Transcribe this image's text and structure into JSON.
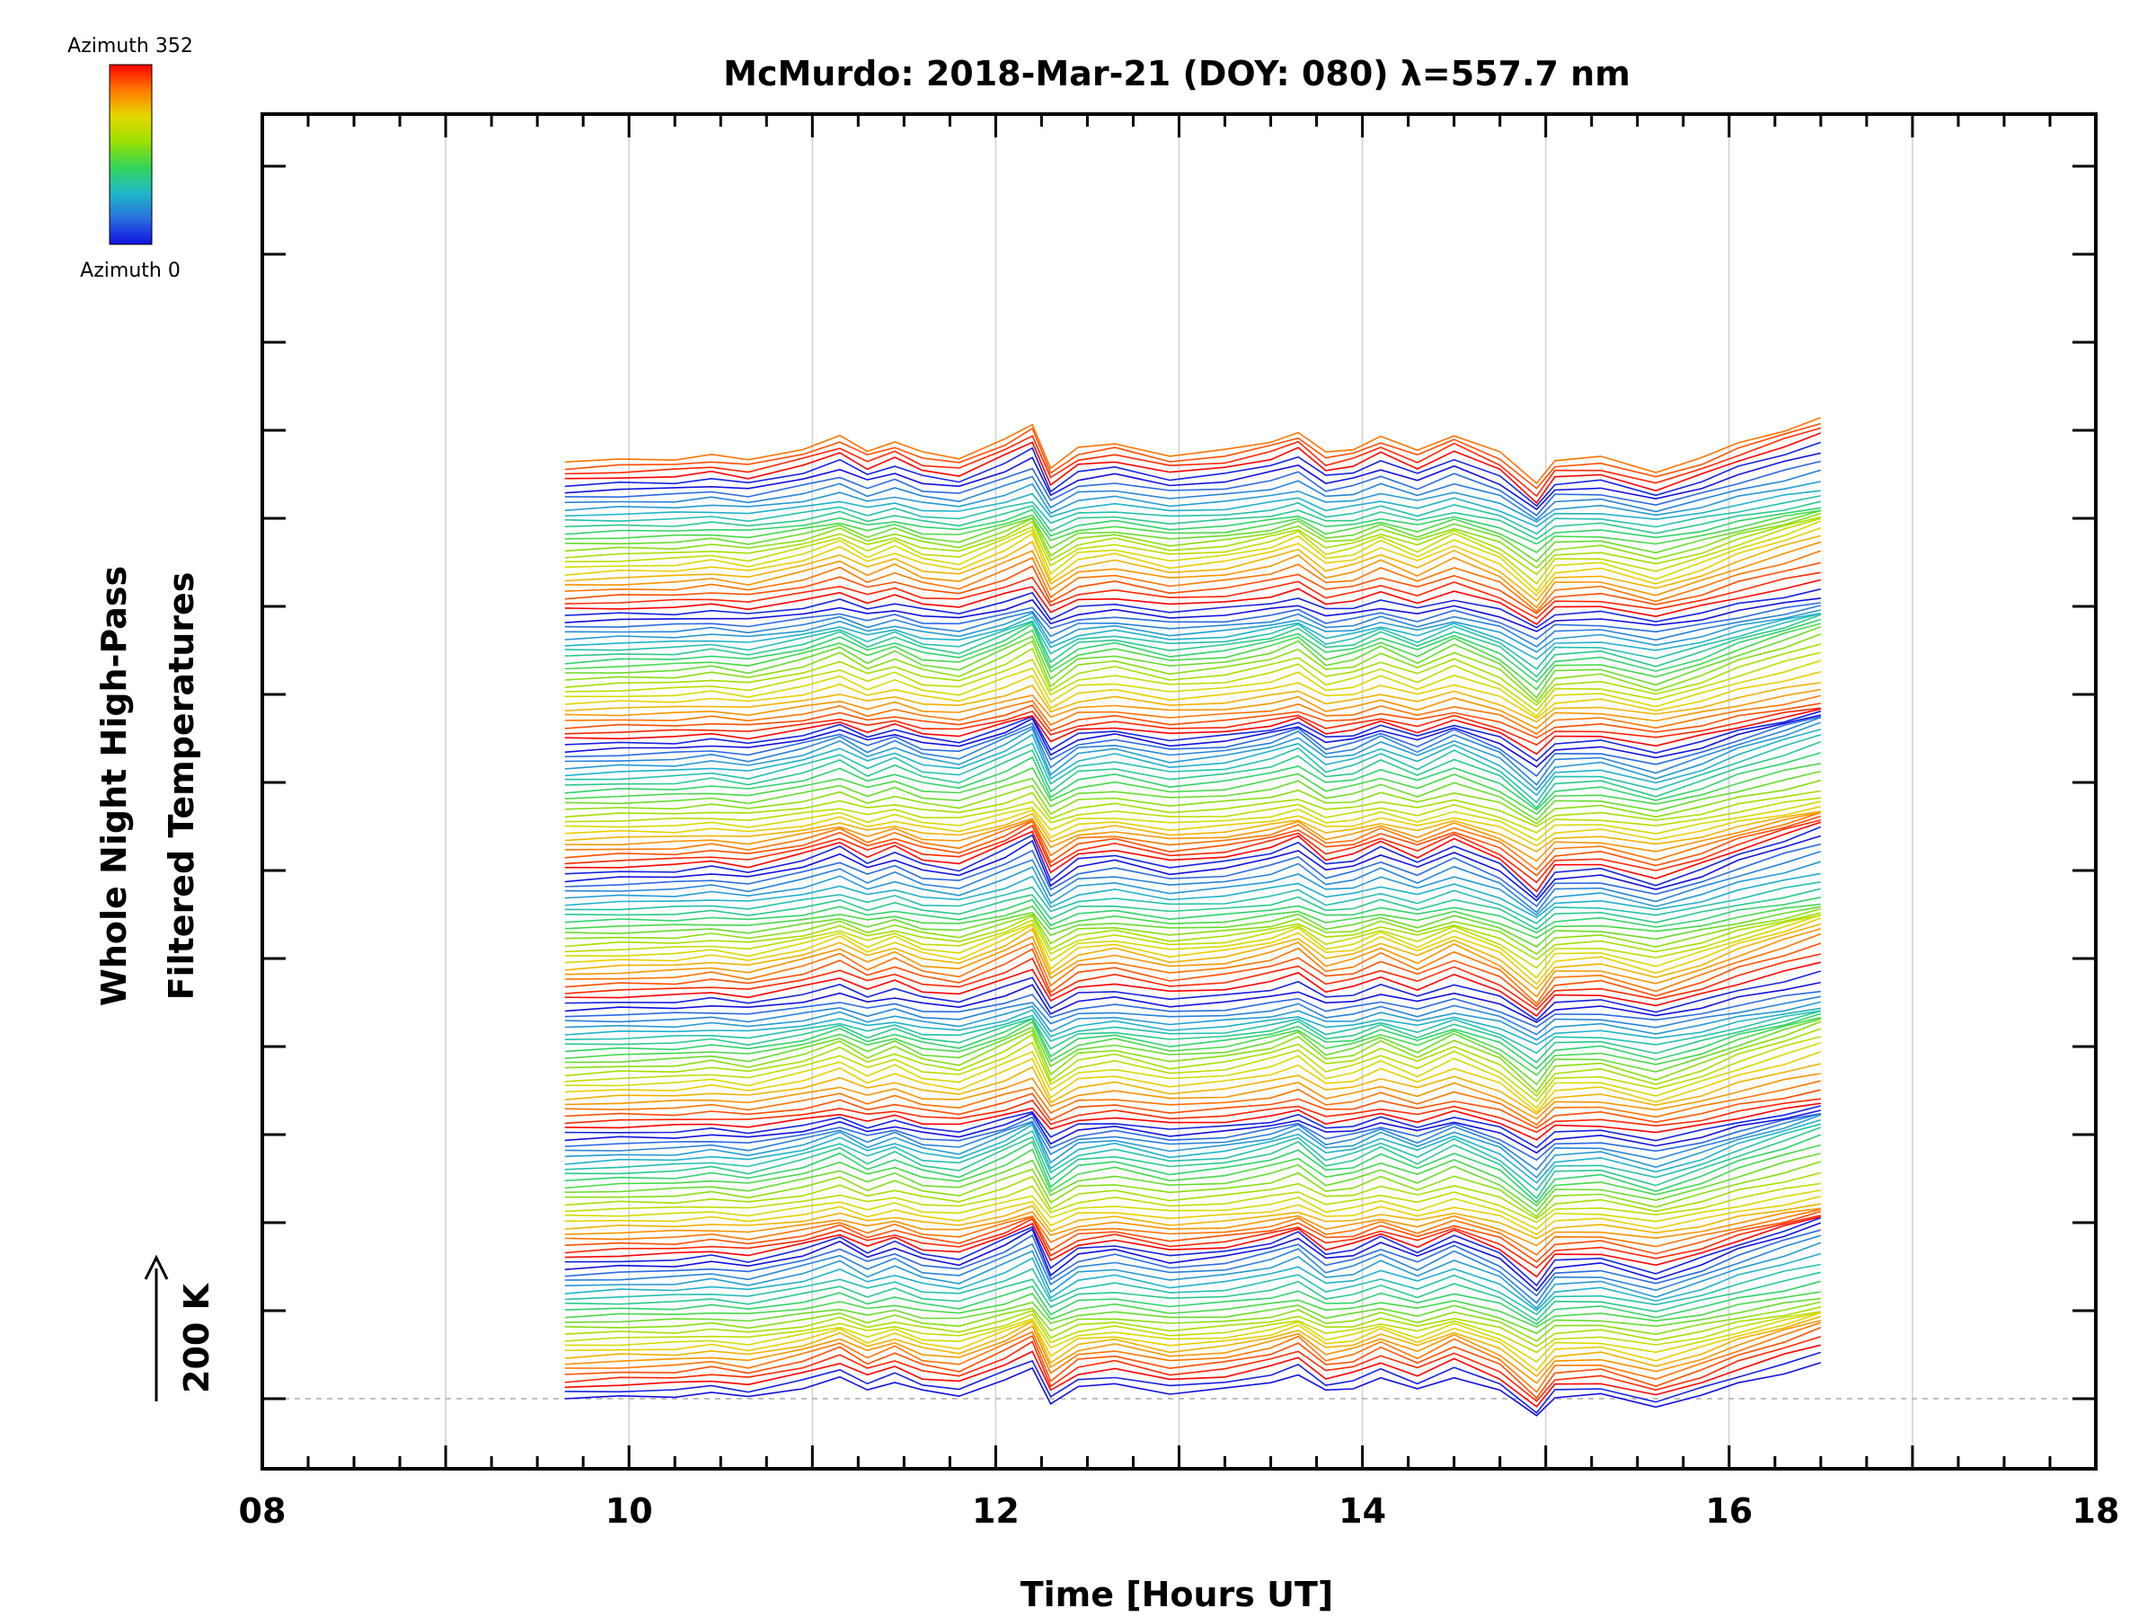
{
  "chart_data": {
    "type": "line",
    "title": "McMurdo: 2018-Mar-21 (DOY: 080) λ=557.7 nm",
    "xlabel": "Time [Hours UT]",
    "ylabel_line1": "Whole Night High-Pass",
    "ylabel_line2": "Filtered Temperatures",
    "scale_label": "200 K",
    "xlim": [
      8,
      18
    ],
    "x_ticks": [
      8,
      10,
      12,
      14,
      16,
      18
    ],
    "x_tick_labels": [
      "08",
      "10",
      "12",
      "14",
      "16",
      "18"
    ],
    "x_minor_step": 0.25,
    "x_gridlines": [
      9,
      10,
      11,
      12,
      13,
      14,
      15,
      16,
      17
    ],
    "y_tick_count": 15,
    "colorbar": {
      "top_label": "Azimuth 352",
      "bottom_label": "Azimuth 0",
      "range": [
        0,
        352
      ],
      "colors": [
        "#ff0000",
        "#ff7a00",
        "#e6d800",
        "#9ae000",
        "#33d65a",
        "#1fb8c8",
        "#2a6ee0",
        "#1010e0"
      ]
    },
    "times": [
      9.65,
      9.95,
      10.25,
      10.45,
      10.65,
      10.95,
      11.15,
      11.3,
      11.45,
      11.6,
      11.8,
      12.05,
      12.2,
      12.3,
      12.45,
      12.65,
      12.95,
      13.25,
      13.5,
      13.65,
      13.8,
      13.95,
      14.1,
      14.3,
      14.5,
      14.75,
      14.95,
      15.05,
      15.3,
      15.6,
      15.85,
      16.05,
      16.3,
      16.5
    ],
    "shape": [
      0,
      10,
      15,
      30,
      10,
      60,
      110,
      50,
      90,
      40,
      20,
      100,
      160,
      -20,
      60,
      80,
      30,
      50,
      90,
      130,
      40,
      60,
      110,
      50,
      120,
      40,
      -90,
      10,
      20,
      -40,
      20,
      80,
      140,
      190
    ],
    "num_series": 160,
    "series_spacing_K": 8.86,
    "stack_baseline_K": 0,
    "period_series": 22,
    "series_azimuth_step_deg": 16
  }
}
